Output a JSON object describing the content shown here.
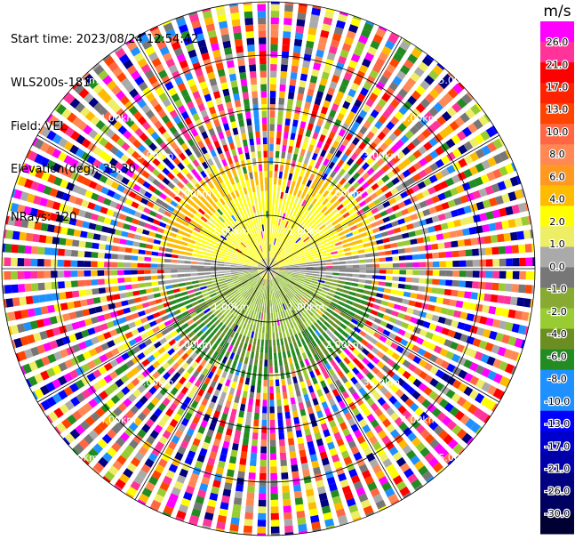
{
  "info": {
    "start_time": "Start time: 2023/08/24 12:54:42",
    "instrument": "WLS200s-181",
    "field": "Field: VEL",
    "elevation": "Elevation(deg): 35.30",
    "nrays": "NRays: 120"
  },
  "ppi": {
    "nrays": 120,
    "range_ring_labels": [
      "1.00km",
      "2.00km",
      "3.00km",
      "4.00km",
      "5.00km"
    ],
    "max_range_label": "5.00km"
  },
  "colorbar": {
    "unit": "m/s",
    "tick_labels": [
      "26.0",
      "21.0",
      "17.0",
      "13.0",
      "10.0",
      "8.0",
      "6.0",
      "4.0",
      "2.0",
      "1.0",
      "0.0",
      "-1.0",
      "-2.0",
      "-4.0",
      "-6.0",
      "-8.0",
      "-10.0",
      "-13.0",
      "-17.0",
      "-21.0",
      "-26.0",
      "-30.0"
    ],
    "colors": [
      "#ff00ff",
      "#ff3399",
      "#ff0000",
      "#ff2200",
      "#ff4400",
      "#ff6644",
      "#ff8855",
      "#ff9922",
      "#ffbb00",
      "#ffff00",
      "#eeee66",
      "#aaaaaa",
      "#777777",
      "#88aa33",
      "#99cc33",
      "#6b8e23",
      "#228b22",
      "#1e90ff",
      "#1e90ff",
      "#0000ff",
      "#0000cc",
      "#0000aa",
      "#000080",
      "#000060",
      "#000033"
    ]
  }
}
